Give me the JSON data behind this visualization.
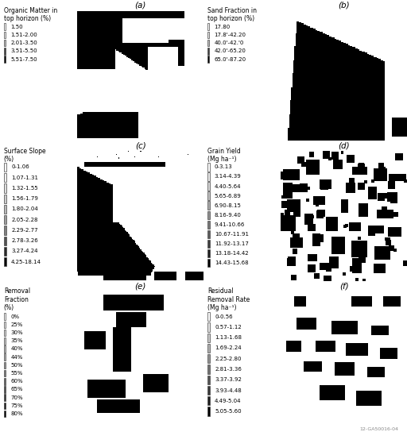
{
  "bg_color": "#ffffff",
  "text_color": "#000000",
  "watermark": "12-GA50016-04",
  "font_size": 5.5,
  "label_font_size": 7.5,
  "panels": [
    {
      "label": "(a)",
      "col": 0,
      "legend_title": "Organic Matter in\ntop horizon (%)",
      "legend_items": [
        {
          "label": "1.50",
          "gray": 1.0
        },
        {
          "label": "1.51-2.00",
          "gray": 0.92
        },
        {
          "label": "2.01-3.50",
          "gray": 0.75
        },
        {
          "label": "3.51-5.50",
          "gray": 0.25
        },
        {
          "label": "5.51-7.50",
          "gray": 0.0
        }
      ]
    },
    {
      "label": "(b)",
      "col": 1,
      "legend_title": "Sand Fraction in\ntop horizon (%)",
      "legend_items": [
        {
          "label": "17.80",
          "gray": 1.0
        },
        {
          "label": "17.8'-42.20",
          "gray": 0.92
        },
        {
          "label": "40.0'-42.'0",
          "gray": 0.75
        },
        {
          "label": "42.0'-65.20",
          "gray": 0.25
        },
        {
          "label": "65.0'-87.20",
          "gray": 0.0
        }
      ]
    },
    {
      "label": "(c)",
      "col": 0,
      "legend_title": "Surface Slope\n(%)",
      "legend_items": [
        {
          "label": "0-1.06",
          "gray": 1.0
        },
        {
          "label": "1.07-1.31",
          "gray": 0.94
        },
        {
          "label": "1.32-1.55",
          "gray": 0.87
        },
        {
          "label": "1.56-1.79",
          "gray": 0.8
        },
        {
          "label": "1.80-2.04",
          "gray": 0.72
        },
        {
          "label": "2.05-2.28",
          "gray": 0.62
        },
        {
          "label": "2.29-2.77",
          "gray": 0.5
        },
        {
          "label": "2.78-3.26",
          "gray": 0.32
        },
        {
          "label": "3.27-4.24",
          "gray": 0.16
        },
        {
          "label": "4.25-18.14",
          "gray": 0.0
        }
      ]
    },
    {
      "label": "(d)",
      "col": 1,
      "legend_title": "Grain Yield\n(Mg ha⁻¹)",
      "legend_items": [
        {
          "label": "0-3.13",
          "gray": 1.0
        },
        {
          "label": "3.14-4.39",
          "gray": 0.92
        },
        {
          "label": "4.40-5.64",
          "gray": 0.84
        },
        {
          "label": "5.65-6.89",
          "gray": 0.76
        },
        {
          "label": "6.90-8.15",
          "gray": 0.67
        },
        {
          "label": "8.16-9.40",
          "gray": 0.57
        },
        {
          "label": "9.41-10.66",
          "gray": 0.47
        },
        {
          "label": "10.67-11.91",
          "gray": 0.36
        },
        {
          "label": "11.92-13.17",
          "gray": 0.24
        },
        {
          "label": "13.18-14.42",
          "gray": 0.12
        },
        {
          "label": "14.43-15.68",
          "gray": 0.0
        }
      ]
    },
    {
      "label": "(e)",
      "col": 0,
      "legend_title": "Removal\nFraction\n(%)",
      "legend_items": [
        {
          "label": "0%",
          "gray": 1.0
        },
        {
          "label": "25%",
          "gray": 0.93
        },
        {
          "label": "30%",
          "gray": 0.87
        },
        {
          "label": "35%",
          "gray": 0.81
        },
        {
          "label": "40%",
          "gray": 0.75
        },
        {
          "label": "44%",
          "gray": 0.69
        },
        {
          "label": "50%",
          "gray": 0.6
        },
        {
          "label": "55%",
          "gray": 0.5
        },
        {
          "label": "60%",
          "gray": 0.4
        },
        {
          "label": "65%",
          "gray": 0.3
        },
        {
          "label": "70%",
          "gray": 0.2
        },
        {
          "label": "75%",
          "gray": 0.1
        },
        {
          "label": "80%",
          "gray": 0.0
        }
      ]
    },
    {
      "label": "(f)",
      "col": 1,
      "legend_title": "Residual\nRemoval Rate\n(Mg ha⁻¹)",
      "legend_items": [
        {
          "label": "0-0.56",
          "gray": 1.0
        },
        {
          "label": "0.57-1.12",
          "gray": 0.9
        },
        {
          "label": "1.13-1.68",
          "gray": 0.8
        },
        {
          "label": "1.69-2.24",
          "gray": 0.7
        },
        {
          "label": "2.25-2.80",
          "gray": 0.58
        },
        {
          "label": "2.81-3.36",
          "gray": 0.45
        },
        {
          "label": "3.37-3.92",
          "gray": 0.33
        },
        {
          "label": "3.93-4.48",
          "gray": 0.22
        },
        {
          "label": "4.49-5.04",
          "gray": 0.11
        },
        {
          "label": "5.05-5.60",
          "gray": 0.0
        }
      ]
    }
  ]
}
